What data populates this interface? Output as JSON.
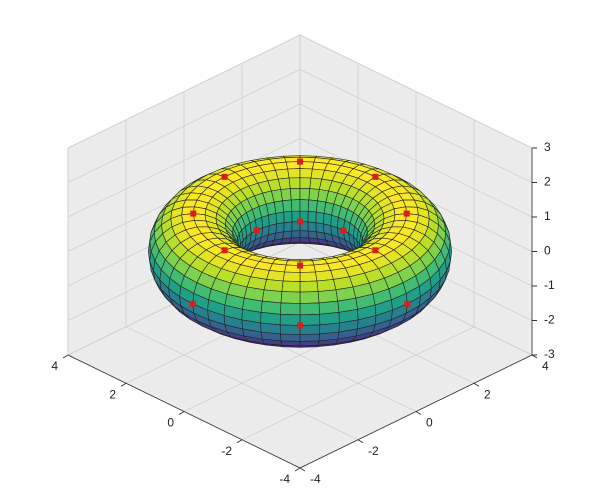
{
  "chart_data": {
    "type": "surface3d",
    "surface": {
      "major_radius": 2.6,
      "minor_radius": 1.1,
      "colormap": "viridis",
      "edge_color": "#222222"
    },
    "markers": {
      "color": "#dd1c1c",
      "x": [
        3.7,
        2.62,
        0,
        -2.62,
        -3.7,
        -2.62,
        0,
        2.62,
        2.6,
        1.84,
        0,
        -1.84,
        -2.6,
        -1.84,
        0,
        1.84,
        1.5,
        1.06,
        0,
        -1.06,
        -1.5,
        -1.06,
        0,
        1.06
      ],
      "y": [
        0,
        2.62,
        3.7,
        2.62,
        0,
        -2.62,
        -3.7,
        -2.62,
        0,
        1.84,
        2.6,
        1.84,
        0,
        -1.84,
        -2.6,
        -1.84,
        0,
        1.06,
        1.5,
        1.06,
        0,
        -1.06,
        -1.5,
        -1.06
      ],
      "z": [
        0,
        0,
        0,
        0,
        0,
        0,
        0,
        0,
        1.1,
        1.1,
        1.1,
        1.1,
        1.1,
        1.1,
        1.1,
        1.1,
        0,
        0,
        0,
        0,
        0,
        0,
        0,
        0
      ]
    },
    "xlim": [
      -4,
      4
    ],
    "ylim": [
      -4,
      4
    ],
    "zlim": [
      -3,
      3
    ],
    "xticks": [
      -4,
      -2,
      0,
      2,
      4
    ],
    "yticks": [
      -4,
      -2,
      0,
      2,
      4
    ],
    "zticks": [
      -3,
      -2,
      -1,
      0,
      1,
      2,
      3
    ],
    "grid": true
  }
}
